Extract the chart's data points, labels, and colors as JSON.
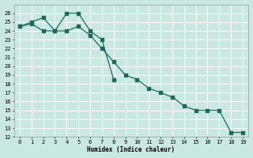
{
  "xlabel": "Humidex (Indice chaleur)",
  "background_color": "#c8e8e0",
  "grid_color": "#ffffff",
  "line_color": "#1a6b5a",
  "line1_x": [
    0,
    1,
    2,
    3,
    4,
    5,
    6,
    7,
    8
  ],
  "line1_y": [
    24.5,
    25.0,
    25.5,
    24.0,
    26.0,
    26.0,
    24.0,
    23.0,
    18.5
  ],
  "line2_x": [
    0,
    1,
    2,
    3,
    4,
    5,
    6,
    7,
    8,
    9,
    10,
    11,
    12,
    13,
    14,
    15,
    16,
    17,
    18,
    19
  ],
  "line2_y": [
    24.5,
    24.8,
    24.0,
    24.0,
    24.0,
    24.5,
    23.5,
    22.0,
    20.5,
    19.0,
    18.5,
    17.5,
    17.0,
    16.5,
    15.5,
    15.0,
    15.0,
    15.0,
    12.5,
    12.5
  ],
  "ylim_min": 12,
  "ylim_max": 27,
  "xlim_min": -0.5,
  "xlim_max": 19.5,
  "yticks": [
    12,
    13,
    14,
    15,
    16,
    17,
    18,
    19,
    20,
    21,
    22,
    23,
    24,
    25,
    26
  ],
  "xticks": [
    0,
    1,
    2,
    3,
    4,
    5,
    6,
    7,
    8,
    9,
    10,
    11,
    12,
    13,
    14,
    15,
    16,
    17,
    18,
    19
  ]
}
